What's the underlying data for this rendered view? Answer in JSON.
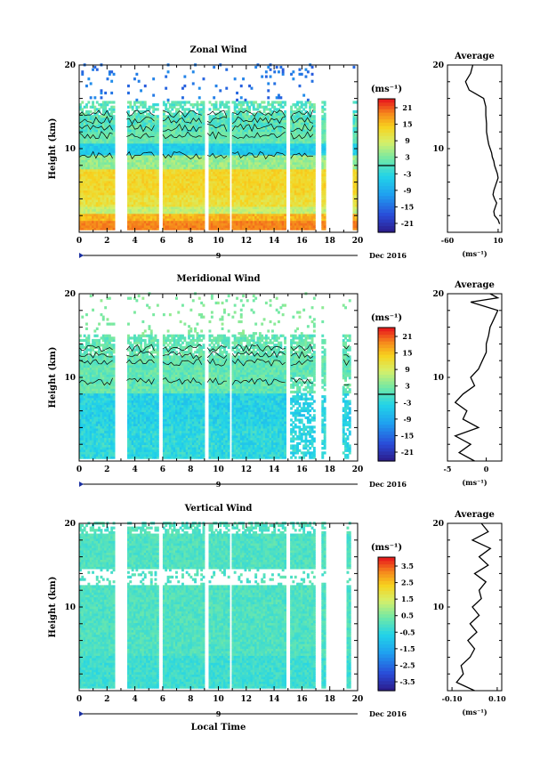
{
  "figure": {
    "xlabel": "Local Time",
    "date_label": "Dec 2016",
    "date_marker": "9",
    "height_label": "Height (km)",
    "unit_label": "(ms⁻¹)",
    "average_title": "Average"
  },
  "chart_data": [
    {
      "type": "heatmap",
      "title": "Zonal Wind",
      "ylabel": "Height (km)",
      "xlabel": "",
      "xlim": [
        0,
        20
      ],
      "ylim": [
        0,
        20
      ],
      "x_ticks": [
        "0",
        "2",
        "4",
        "6",
        "8",
        "10",
        "12",
        "14",
        "16",
        "18",
        "20"
      ],
      "y_ticks": [
        "10",
        "20"
      ],
      "colorbar": {
        "label": "(ms⁻¹)",
        "ticks": [
          "21",
          "15",
          "9",
          "3",
          "-3",
          "-9",
          "-15",
          "-21"
        ],
        "contour_level": "0"
      },
      "data_gaps_hours": [
        [
          2.5,
          3.4
        ],
        [
          5.6,
          5.95
        ],
        [
          8.9,
          9.2
        ],
        [
          10.7,
          10.9
        ],
        [
          14.8,
          15.1
        ],
        [
          16.9,
          17.4
        ],
        [
          17.6,
          19.6
        ],
        [
          19.9,
          20
        ]
      ],
      "profile": {
        "title": "Average",
        "xlabel": "(ms⁻¹)",
        "x_ticks": [
          "-60",
          "10"
        ],
        "xlim": [
          -60,
          15
        ],
        "heights": [
          1,
          1.5,
          2,
          2.5,
          3,
          3.5,
          4,
          4.5,
          5,
          5.5,
          6,
          6.5,
          7,
          7.5,
          8,
          8.5,
          9,
          9.5,
          10,
          10.5,
          11,
          11.5,
          12,
          13,
          14,
          15,
          16,
          17,
          18,
          19,
          20
        ],
        "values": [
          12,
          10,
          5,
          4,
          6,
          8,
          5,
          3,
          4,
          6,
          8,
          10,
          9,
          7,
          5,
          4,
          2,
          1,
          -1,
          -3,
          -4,
          -5,
          -6,
          -6,
          -7,
          -7,
          -10,
          -30,
          -35,
          -28,
          -25
        ]
      }
    },
    {
      "type": "heatmap",
      "title": "Meridional Wind",
      "ylabel": "Height (km)",
      "xlabel": "",
      "xlim": [
        0,
        20
      ],
      "ylim": [
        0,
        20
      ],
      "x_ticks": [
        "0",
        "2",
        "4",
        "6",
        "8",
        "10",
        "12",
        "14",
        "16",
        "18",
        "20"
      ],
      "y_ticks": [
        "10",
        "20"
      ],
      "colorbar": {
        "label": "(ms⁻¹)",
        "ticks": [
          "21",
          "15",
          "9",
          "3",
          "-3",
          "-9",
          "-15",
          "-21"
        ],
        "contour_level": "0"
      },
      "data_gaps_hours": [
        [
          2.5,
          3.4
        ],
        [
          5.6,
          5.95
        ],
        [
          8.9,
          9.2
        ],
        [
          10.7,
          10.9
        ],
        [
          14.8,
          15.1
        ],
        [
          16.9,
          17.4
        ],
        [
          17.6,
          18.9
        ],
        [
          19.4,
          20
        ]
      ],
      "profile": {
        "title": "Average",
        "xlabel": "(ms⁻¹)",
        "x_ticks": [
          "-5",
          "0"
        ],
        "xlim": [
          -5,
          2
        ],
        "heights": [
          0,
          1,
          2,
          3,
          4,
          5,
          6,
          7,
          8,
          9,
          10,
          11,
          12,
          13,
          14,
          15,
          16,
          17,
          18,
          19,
          19.5,
          20
        ],
        "values": [
          -1.5,
          -3.5,
          -2,
          -4,
          -1,
          -3,
          -2.5,
          -4,
          -3,
          -1.5,
          -2,
          -1,
          -0.5,
          0,
          0,
          0.3,
          0.5,
          1,
          1.5,
          -2,
          1.5,
          0.5
        ]
      }
    },
    {
      "type": "heatmap",
      "title": "Vertical Wind",
      "ylabel": "Height (km)",
      "xlabel": "Local Time",
      "xlim": [
        0,
        20
      ],
      "ylim": [
        0,
        20
      ],
      "x_ticks": [
        "0",
        "2",
        "4",
        "6",
        "8",
        "10",
        "12",
        "14",
        "16",
        "18",
        "20"
      ],
      "y_ticks": [
        "10",
        "20"
      ],
      "colorbar": {
        "label": "(ms⁻¹)",
        "ticks": [
          "3.5",
          "2.5",
          "1.5",
          "0.5",
          "-0.5",
          "-1.5",
          "-2.5",
          "-3.5"
        ]
      },
      "data_gaps_hours": [
        [
          2.5,
          3.4
        ],
        [
          5.6,
          5.95
        ],
        [
          8.9,
          9.2
        ],
        [
          10.7,
          10.9
        ],
        [
          14.8,
          15.1
        ],
        [
          16.9,
          17.4
        ],
        [
          17.6,
          19.1
        ],
        [
          19.4,
          20
        ]
      ],
      "profile": {
        "title": "Average",
        "xlabel": "(ms⁻¹)",
        "x_ticks": [
          "-0.10",
          "0.10"
        ],
        "xlim": [
          -0.12,
          0.12
        ],
        "heights": [
          0,
          1,
          2,
          3,
          4,
          5,
          6,
          7,
          8,
          9,
          10,
          11,
          12,
          13,
          14,
          15,
          16,
          17,
          18,
          19,
          20
        ],
        "values": [
          0.0,
          -0.08,
          -0.05,
          -0.06,
          -0.02,
          0.0,
          -0.03,
          0.01,
          -0.02,
          0.02,
          -0.01,
          0.03,
          0.02,
          0.05,
          0.0,
          0.06,
          0.02,
          0.07,
          -0.01,
          0.06,
          0.03
        ]
      }
    }
  ]
}
